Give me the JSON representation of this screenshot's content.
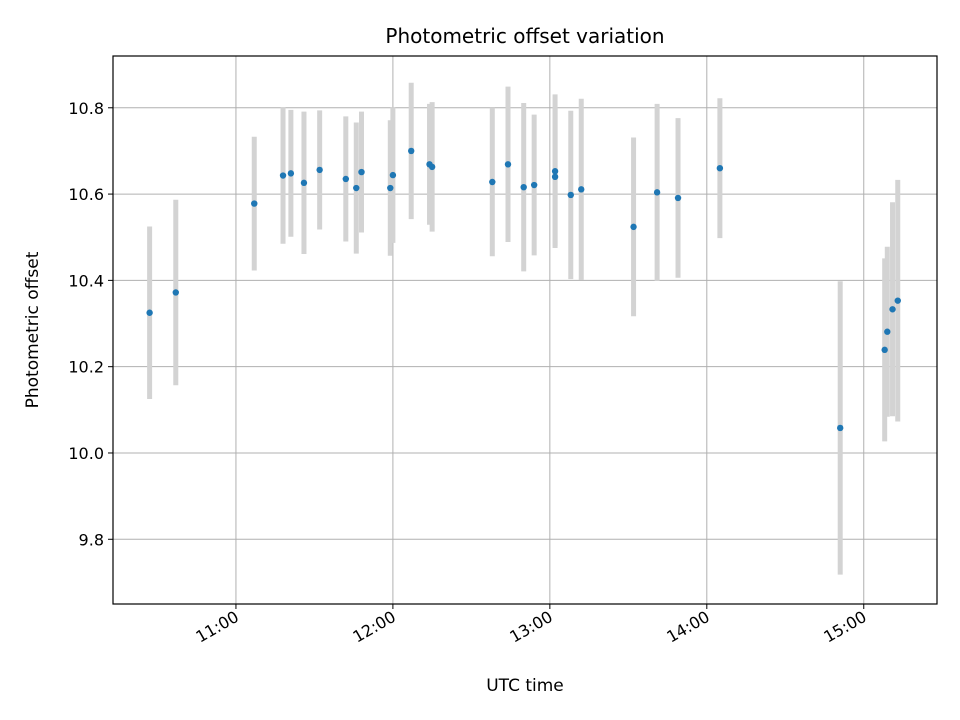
{
  "chart_data": {
    "type": "scatter",
    "title": "Photometric offset variation",
    "xlabel": "UTC time",
    "ylabel": "Photometric offset",
    "xlim": [
      "10:13",
      "15:28"
    ],
    "ylim": [
      9.65,
      10.92
    ],
    "xticks": [
      "11:00",
      "12:00",
      "13:00",
      "14:00",
      "15:00"
    ],
    "yticks": [
      9.8,
      10.0,
      10.2,
      10.4,
      10.6,
      10.8
    ],
    "grid": true,
    "marker_color": "#1f77b4",
    "errorbar_color": "#d3d3d3",
    "series": [
      {
        "points": [
          {
            "x": "10:27",
            "y": 10.325,
            "err": 0.2
          },
          {
            "x": "10:37",
            "y": 10.372,
            "err": 0.215
          },
          {
            "x": "11:07",
            "y": 10.578,
            "err": 0.155
          },
          {
            "x": "11:18",
            "y": 10.643,
            "err": 0.158
          },
          {
            "x": "11:21",
            "y": 10.648,
            "err": 0.147
          },
          {
            "x": "11:26",
            "y": 10.626,
            "err": 0.165
          },
          {
            "x": "11:32",
            "y": 10.656,
            "err": 0.138
          },
          {
            "x": "11:42",
            "y": 10.635,
            "err": 0.145
          },
          {
            "x": "11:46",
            "y": 10.614,
            "err": 0.152
          },
          {
            "x": "11:48",
            "y": 10.651,
            "err": 0.14
          },
          {
            "x": "11:59",
            "y": 10.614,
            "err": 0.157
          },
          {
            "x": "12:00",
            "y": 10.644,
            "err": 0.157
          },
          {
            "x": "12:07",
            "y": 10.7,
            "err": 0.158
          },
          {
            "x": "12:14",
            "y": 10.669,
            "err": 0.14
          },
          {
            "x": "12:15",
            "y": 10.663,
            "err": 0.15
          },
          {
            "x": "12:38",
            "y": 10.628,
            "err": 0.172
          },
          {
            "x": "12:44",
            "y": 10.669,
            "err": 0.18
          },
          {
            "x": "12:50",
            "y": 10.616,
            "err": 0.195
          },
          {
            "x": "12:54",
            "y": 10.621,
            "err": 0.163
          },
          {
            "x": "13:02",
            "y": 10.64,
            "err": 0.16
          },
          {
            "x": "13:02",
            "y": 10.653,
            "err": 0.178
          },
          {
            "x": "13:08",
            "y": 10.598,
            "err": 0.195
          },
          {
            "x": "13:12",
            "y": 10.611,
            "err": 0.21
          },
          {
            "x": "13:32",
            "y": 10.524,
            "err": 0.207
          },
          {
            "x": "13:41",
            "y": 10.604,
            "err": 0.205
          },
          {
            "x": "13:49",
            "y": 10.591,
            "err": 0.185
          },
          {
            "x": "14:05",
            "y": 10.66,
            "err": 0.162
          },
          {
            "x": "14:51",
            "y": 10.058,
            "err": 0.34
          },
          {
            "x": "15:08",
            "y": 10.239,
            "err": 0.212
          },
          {
            "x": "15:09",
            "y": 10.281,
            "err": 0.197
          },
          {
            "x": "15:11",
            "y": 10.333,
            "err": 0.248
          },
          {
            "x": "15:13",
            "y": 10.353,
            "err": 0.28
          }
        ]
      }
    ]
  }
}
